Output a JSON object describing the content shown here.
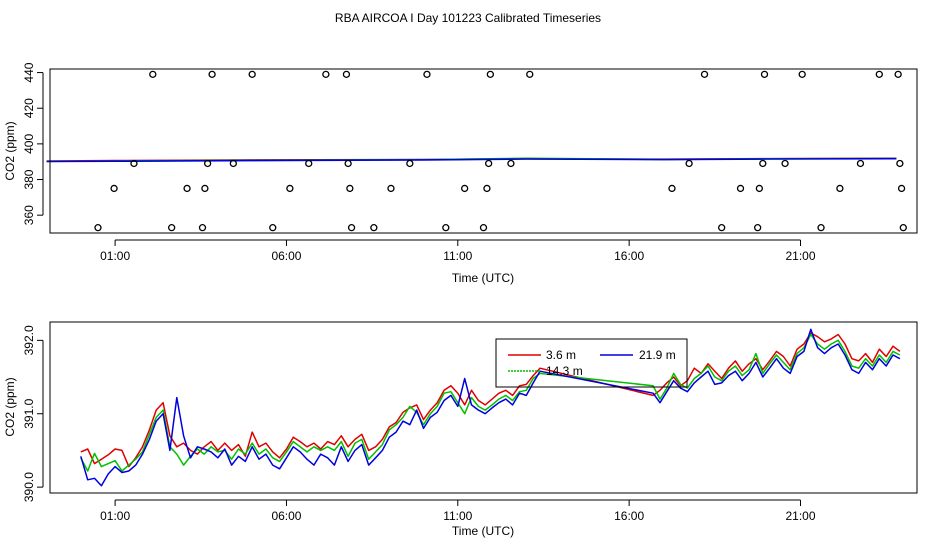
{
  "title": "RBA AIRCOA I  Day 101223  Calibrated Timeseries",
  "colors": {
    "s1": "#e00000",
    "s2": "#00c000",
    "s3": "#0000e0",
    "axis": "#000000"
  },
  "chart_data": [
    {
      "type": "scatter",
      "panel": "top",
      "xlabel": "Time (UTC)",
      "ylabel": "CO2 (ppm)",
      "xlim": [
        -0.9,
        24.4
      ],
      "ylim": [
        350,
        442
      ],
      "xticks": [
        1,
        6,
        11,
        16,
        21
      ],
      "xtick_labels": [
        "01:00",
        "06:00",
        "11:00",
        "16:00",
        "21:00"
      ],
      "yticks": [
        360,
        380,
        400,
        420,
        440
      ],
      "ytick_labels": [
        "360",
        "380",
        "400",
        "420",
        "440"
      ],
      "lines": [
        {
          "color": "#e00000",
          "x": [
            -1,
            1,
            5,
            10,
            13,
            17,
            20,
            23.8
          ],
          "y": [
            390.4,
            390.6,
            391.0,
            391.2,
            391.6,
            391.4,
            391.7,
            391.9
          ]
        },
        {
          "color": "#00c000",
          "x": [
            -1,
            1,
            5,
            10,
            13,
            17,
            20,
            23.8
          ],
          "y": [
            390.2,
            390.4,
            390.8,
            391.1,
            391.9,
            391.3,
            391.6,
            391.8
          ]
        },
        {
          "color": "#0000e0",
          "x": [
            -1,
            1,
            5,
            10,
            13,
            17,
            20,
            23.8
          ],
          "y": [
            390.1,
            390.3,
            390.6,
            391.0,
            391.5,
            391.2,
            391.5,
            391.7
          ]
        }
      ],
      "points": [
        [
          0.5,
          353
        ],
        [
          0.97,
          375
        ],
        [
          1.55,
          389
        ],
        [
          2.1,
          439
        ],
        [
          2.65,
          353
        ],
        [
          3.1,
          375
        ],
        [
          3.55,
          353
        ],
        [
          3.62,
          375
        ],
        [
          3.7,
          389
        ],
        [
          3.83,
          439
        ],
        [
          4.45,
          389
        ],
        [
          5.0,
          439
        ],
        [
          5.6,
          353
        ],
        [
          6.1,
          375
        ],
        [
          6.65,
          389
        ],
        [
          7.15,
          439
        ],
        [
          7.75,
          439
        ],
        [
          7.8,
          389
        ],
        [
          7.85,
          375
        ],
        [
          7.9,
          353
        ],
        [
          8.55,
          353
        ],
        [
          9.05,
          375
        ],
        [
          9.6,
          389
        ],
        [
          10.1,
          439
        ],
        [
          10.65,
          353
        ],
        [
          11.2,
          375
        ],
        [
          11.75,
          353
        ],
        [
          11.85,
          375
        ],
        [
          11.9,
          389
        ],
        [
          11.95,
          439
        ],
        [
          12.55,
          389
        ],
        [
          13.1,
          439
        ],
        [
          17.25,
          375
        ],
        [
          17.75,
          389
        ],
        [
          18.2,
          439
        ],
        [
          18.7,
          353
        ],
        [
          19.25,
          375
        ],
        [
          19.75,
          353
        ],
        [
          19.8,
          375
        ],
        [
          19.9,
          389
        ],
        [
          19.95,
          439
        ],
        [
          20.55,
          389
        ],
        [
          21.05,
          439
        ],
        [
          21.6,
          353
        ],
        [
          22.15,
          375
        ],
        [
          22.75,
          389
        ],
        [
          23.3,
          439
        ],
        [
          23.85,
          439
        ],
        [
          23.9,
          389
        ],
        [
          23.95,
          375
        ],
        [
          24.0,
          353
        ]
      ]
    },
    {
      "type": "line",
      "panel": "bottom",
      "xlabel": "Time (UTC)",
      "ylabel": "CO2 (ppm)",
      "xlim": [
        -0.9,
        24.4
      ],
      "ylim": [
        389.92,
        392.25
      ],
      "xticks": [
        1,
        6,
        11,
        16,
        21
      ],
      "xtick_labels": [
        "01:00",
        "06:00",
        "11:00",
        "16:00",
        "21:00"
      ],
      "yticks": [
        390.0,
        391.0,
        392.0
      ],
      "ytick_labels": [
        "390.0",
        "391.0",
        "392.0"
      ],
      "legend": {
        "entries": [
          "3.6 m",
          "21.9 m",
          "14.3 m"
        ]
      },
      "series": [
        {
          "name": "3.6 m",
          "color": "#e00000",
          "x": [
            0,
            0.2,
            0.4,
            0.6,
            0.8,
            1.0,
            1.2,
            1.4,
            1.6,
            1.8,
            2.0,
            2.2,
            2.4,
            2.6,
            2.8,
            3.0,
            3.2,
            3.4,
            3.6,
            3.8,
            4.0,
            4.2,
            4.4,
            4.6,
            4.8,
            5.0,
            5.2,
            5.4,
            5.6,
            5.8,
            6.0,
            6.2,
            6.4,
            6.6,
            6.8,
            7.0,
            7.2,
            7.4,
            7.6,
            7.8,
            8.0,
            8.2,
            8.4,
            8.6,
            8.8,
            9.0,
            9.2,
            9.4,
            9.6,
            9.8,
            10.0,
            10.2,
            10.4,
            10.6,
            10.8,
            11.0,
            11.2,
            11.4,
            11.6,
            11.8,
            12.0,
            12.2,
            12.4,
            12.6,
            12.8,
            13.0,
            13.2,
            13.4,
            16.7,
            16.9,
            17.1,
            17.3,
            17.5,
            17.7,
            17.9,
            18.1,
            18.3,
            18.5,
            18.7,
            18.9,
            19.1,
            19.3,
            19.5,
            19.7,
            19.9,
            20.1,
            20.3,
            20.5,
            20.7,
            20.9,
            21.1,
            21.3,
            21.5,
            21.7,
            21.9,
            22.1,
            22.3,
            22.5,
            22.7,
            22.9,
            23.1,
            23.3,
            23.5,
            23.7,
            23.9
          ],
          "y": [
            390.48,
            390.52,
            390.32,
            390.38,
            390.44,
            390.52,
            390.5,
            390.28,
            390.4,
            390.55,
            390.78,
            391.05,
            391.15,
            390.7,
            390.55,
            390.6,
            390.5,
            390.45,
            390.55,
            390.62,
            390.5,
            390.6,
            390.5,
            390.58,
            390.42,
            390.75,
            390.55,
            390.6,
            390.48,
            390.4,
            390.52,
            390.68,
            390.62,
            390.55,
            390.6,
            390.52,
            390.62,
            390.58,
            390.7,
            390.55,
            390.65,
            390.72,
            390.5,
            390.55,
            390.65,
            390.82,
            390.88,
            391.02,
            391.08,
            391.12,
            390.92,
            391.05,
            391.15,
            391.32,
            391.38,
            391.28,
            391.12,
            391.32,
            391.18,
            391.12,
            391.2,
            391.28,
            391.32,
            391.25,
            391.38,
            391.4,
            391.52,
            391.62,
            391.25,
            391.32,
            391.42,
            391.5,
            391.38,
            391.45,
            391.62,
            391.55,
            391.68,
            391.58,
            391.48,
            391.62,
            391.72,
            391.58,
            391.68,
            391.75,
            391.6,
            391.72,
            391.85,
            391.78,
            391.65,
            391.88,
            391.95,
            392.1,
            392.05,
            391.98,
            392.02,
            392.08,
            391.95,
            391.75,
            391.72,
            391.82,
            391.7,
            391.88,
            391.78,
            391.92,
            391.85
          ]
        },
        {
          "name": "14.3 m",
          "color": "#00c000",
          "x": [
            0,
            0.2,
            0.4,
            0.6,
            0.8,
            1.0,
            1.2,
            1.4,
            1.6,
            1.8,
            2.0,
            2.2,
            2.4,
            2.6,
            2.8,
            3.0,
            3.2,
            3.4,
            3.6,
            3.8,
            4.0,
            4.2,
            4.4,
            4.6,
            4.8,
            5.0,
            5.2,
            5.4,
            5.6,
            5.8,
            6.0,
            6.2,
            6.4,
            6.6,
            6.8,
            7.0,
            7.2,
            7.4,
            7.6,
            7.8,
            8.0,
            8.2,
            8.4,
            8.6,
            8.8,
            9.0,
            9.2,
            9.4,
            9.6,
            9.8,
            10.0,
            10.2,
            10.4,
            10.6,
            10.8,
            11.0,
            11.2,
            11.4,
            11.6,
            11.8,
            12.0,
            12.2,
            12.4,
            12.6,
            12.8,
            13.0,
            13.2,
            13.4,
            16.7,
            16.9,
            17.1,
            17.3,
            17.5,
            17.7,
            17.9,
            18.1,
            18.3,
            18.5,
            18.7,
            18.9,
            19.1,
            19.3,
            19.5,
            19.7,
            19.9,
            20.1,
            20.3,
            20.5,
            20.7,
            20.9,
            21.1,
            21.3,
            21.5,
            21.7,
            21.9,
            22.1,
            22.3,
            22.5,
            22.7,
            22.9,
            23.1,
            23.3,
            23.5,
            23.7,
            23.9
          ],
          "y": [
            390.4,
            390.22,
            390.46,
            390.28,
            390.32,
            390.36,
            390.22,
            390.3,
            390.38,
            390.48,
            390.72,
            390.95,
            391.05,
            390.55,
            390.45,
            390.3,
            390.42,
            390.52,
            390.45,
            390.55,
            390.48,
            390.5,
            390.38,
            390.52,
            390.45,
            390.6,
            390.45,
            390.52,
            390.4,
            390.35,
            390.48,
            390.62,
            390.55,
            390.48,
            390.55,
            390.5,
            390.55,
            390.5,
            390.62,
            390.42,
            390.6,
            390.65,
            390.38,
            390.48,
            390.58,
            390.78,
            390.85,
            390.95,
            391.1,
            391.02,
            390.85,
            391.0,
            391.1,
            391.28,
            391.3,
            391.15,
            391.0,
            391.22,
            391.1,
            391.05,
            391.12,
            391.2,
            391.25,
            391.18,
            391.3,
            391.32,
            391.48,
            391.55,
            391.38,
            391.2,
            391.35,
            391.55,
            391.4,
            391.35,
            391.48,
            391.55,
            391.65,
            391.5,
            391.45,
            391.58,
            391.65,
            391.52,
            391.6,
            391.82,
            391.55,
            391.68,
            391.8,
            391.7,
            391.6,
            391.82,
            391.9,
            392.08,
            391.95,
            391.88,
            391.95,
            392.0,
            391.85,
            391.65,
            391.62,
            391.75,
            391.65,
            391.8,
            391.7,
            391.85,
            391.8
          ]
        },
        {
          "name": "21.9 m",
          "color": "#0000e0",
          "x": [
            0,
            0.2,
            0.4,
            0.6,
            0.8,
            1.0,
            1.2,
            1.4,
            1.6,
            1.8,
            2.0,
            2.2,
            2.4,
            2.6,
            2.8,
            3.0,
            3.2,
            3.4,
            3.6,
            3.8,
            4.0,
            4.2,
            4.4,
            4.6,
            4.8,
            5.0,
            5.2,
            5.4,
            5.6,
            5.8,
            6.0,
            6.2,
            6.4,
            6.6,
            6.8,
            7.0,
            7.2,
            7.4,
            7.6,
            7.8,
            8.0,
            8.2,
            8.4,
            8.6,
            8.8,
            9.0,
            9.2,
            9.4,
            9.6,
            9.8,
            10.0,
            10.2,
            10.4,
            10.6,
            10.8,
            11.0,
            11.2,
            11.4,
            11.6,
            11.8,
            12.0,
            12.2,
            12.4,
            12.6,
            12.8,
            13.0,
            13.2,
            13.4,
            16.7,
            16.9,
            17.1,
            17.3,
            17.5,
            17.7,
            17.9,
            18.1,
            18.3,
            18.5,
            18.7,
            18.9,
            19.1,
            19.3,
            19.5,
            19.7,
            19.9,
            20.1,
            20.3,
            20.5,
            20.7,
            20.9,
            21.1,
            21.3,
            21.5,
            21.7,
            21.9,
            22.1,
            22.3,
            22.5,
            22.7,
            22.9,
            23.1,
            23.3,
            23.5,
            23.7,
            23.9
          ],
          "y": [
            390.42,
            390.1,
            390.12,
            390.02,
            390.18,
            390.28,
            390.2,
            390.22,
            390.3,
            390.45,
            390.65,
            390.9,
            391.0,
            390.5,
            391.22,
            390.7,
            390.4,
            390.55,
            390.52,
            390.48,
            390.4,
            390.52,
            390.3,
            390.42,
            390.35,
            390.55,
            390.38,
            390.45,
            390.3,
            390.25,
            390.4,
            390.55,
            390.48,
            390.38,
            390.3,
            390.45,
            390.4,
            390.3,
            390.55,
            390.35,
            390.5,
            390.58,
            390.3,
            390.4,
            390.5,
            390.68,
            390.75,
            390.9,
            390.85,
            391.05,
            390.8,
            390.95,
            391.02,
            391.18,
            391.25,
            391.1,
            391.48,
            391.12,
            391.05,
            391.0,
            391.08,
            391.15,
            391.2,
            391.12,
            391.28,
            391.25,
            391.42,
            391.58,
            391.28,
            391.15,
            391.3,
            391.45,
            391.35,
            391.3,
            391.42,
            391.5,
            391.58,
            391.4,
            391.42,
            391.52,
            391.58,
            391.45,
            391.55,
            391.7,
            391.5,
            391.62,
            391.75,
            391.62,
            391.55,
            391.78,
            391.85,
            392.15,
            391.9,
            391.82,
            391.9,
            391.95,
            391.8,
            391.6,
            391.55,
            391.7,
            391.6,
            391.75,
            391.65,
            391.8,
            391.75
          ]
        }
      ]
    }
  ]
}
